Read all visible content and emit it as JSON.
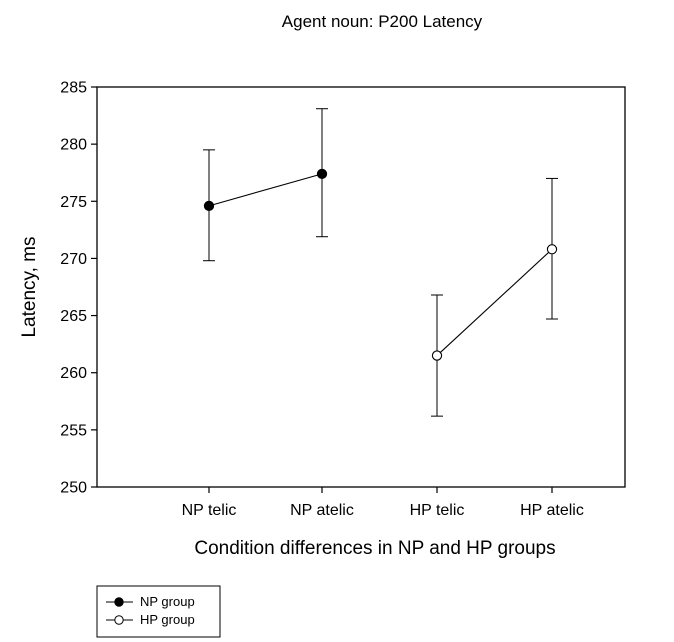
{
  "chart_data": {
    "type": "line",
    "title": "Agent noun: P200 Latency",
    "xlabel": "Condition differences in NP and HP groups",
    "ylabel": "Latency, ms",
    "ylim": [
      250,
      285
    ],
    "yticks": [
      250,
      255,
      260,
      265,
      270,
      275,
      280,
      285
    ],
    "categories": [
      "NP  telic",
      "NP atelic",
      "HP telic",
      "HP atelic"
    ],
    "grid": false,
    "legend_position": "bottom-left, below plot",
    "series": [
      {
        "name": "NP group",
        "marker": "filled-circle",
        "points": [
          {
            "category": "NP  telic",
            "y": 274.6,
            "err_low": 269.8,
            "err_high": 279.5
          },
          {
            "category": "NP atelic",
            "y": 277.4,
            "err_low": 271.9,
            "err_high": 283.1
          }
        ]
      },
      {
        "name": "HP group",
        "marker": "open-circle",
        "points": [
          {
            "category": "HP telic",
            "y": 261.5,
            "err_low": 256.2,
            "err_high": 266.8
          },
          {
            "category": "HP atelic",
            "y": 270.8,
            "err_low": 264.7,
            "err_high": 277.0
          }
        ]
      }
    ]
  }
}
